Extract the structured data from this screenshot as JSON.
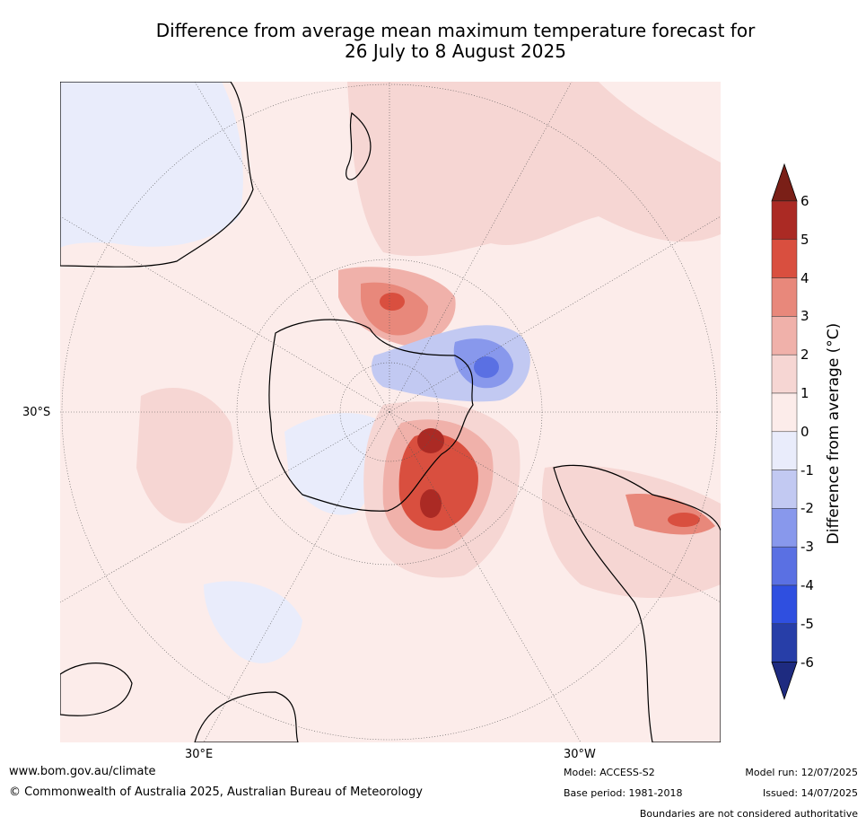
{
  "title_line1": "Difference from average mean maximum temperature forecast for",
  "title_line2": "26 July to 8 August 2025",
  "labels": {
    "lat30s": "30°S",
    "lon30e": "30°E",
    "lon30w": "30°W"
  },
  "colorbar": {
    "label": "Difference from average (°C)",
    "ticks": [
      "6",
      "5",
      "4",
      "3",
      "2",
      "1",
      "0",
      "-1",
      "-2",
      "-3",
      "-4",
      "-5",
      "-6"
    ],
    "colors_top_to_bottom": [
      "#ab2a24",
      "#d94f3f",
      "#e8887b",
      "#f0b1aa",
      "#f6d6d3",
      "#fcecea",
      "#e9ecfb",
      "#c2c9f2",
      "#8898ec",
      "#5a70e3",
      "#2f4fe0",
      "#273ea8"
    ],
    "over_color": "#7a1f17",
    "under_color": "#1e2b80"
  },
  "footer": {
    "url": "www.bom.gov.au/climate",
    "copyright": "© Commonwealth of Australia 2025, Australian Bureau of Meteorology",
    "model": "Model: ACCESS-S2",
    "base": "Base period: 1981-2018",
    "run": "Model run: 12/07/2025",
    "issued": "Issued: 14/07/2025",
    "disclaimer": "Boundaries are not considered authoritative"
  }
}
